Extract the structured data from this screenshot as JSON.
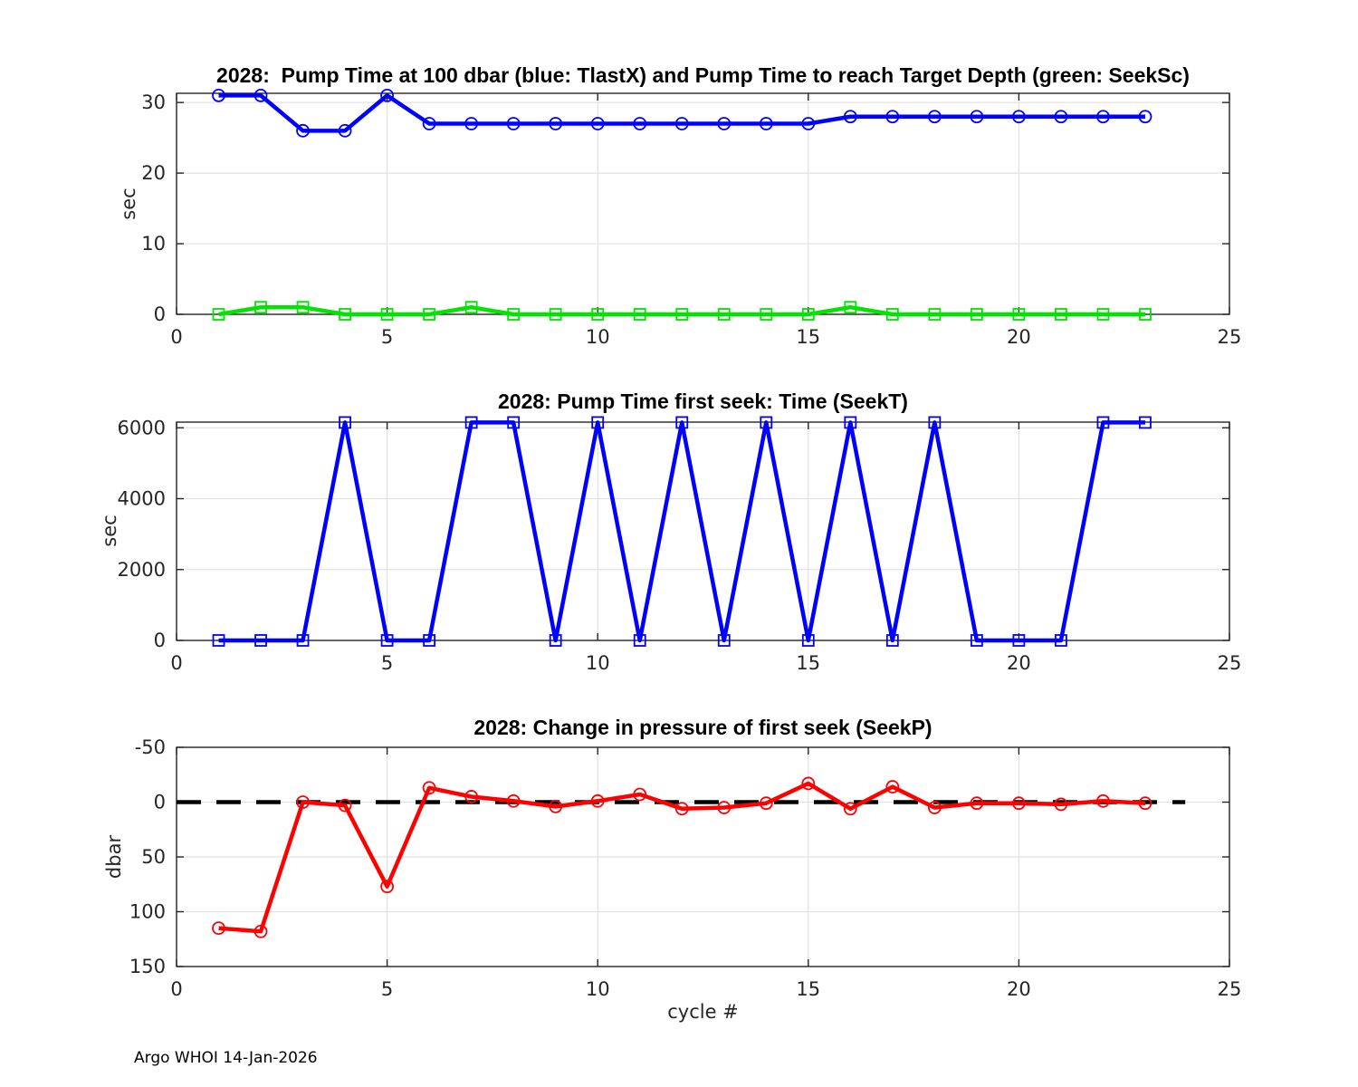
{
  "figure": {
    "footer": "Argo WHOI 14-Jan-2026",
    "background": "#ffffff"
  },
  "chart_data": [
    {
      "type": "line",
      "title": "2028:  Pump Time at 100 dbar (blue: TlastX) and Pump Time to reach Target Depth (green: SeekSc)",
      "ylabel": "sec",
      "xlabel": "",
      "xlim": [
        0,
        25
      ],
      "ylim": [
        0,
        31.3
      ],
      "y_reversed": false,
      "grid": true,
      "xticks": [
        0,
        5,
        10,
        15,
        20,
        25
      ],
      "yticks": [
        0,
        10,
        20,
        30
      ],
      "x": [
        1,
        2,
        3,
        4,
        5,
        6,
        7,
        8,
        9,
        10,
        11,
        12,
        13,
        14,
        15,
        16,
        17,
        18,
        19,
        20,
        21,
        22,
        23
      ],
      "series": [
        {
          "name": "TlastX",
          "color": "#0000ff",
          "marker": "circle",
          "values": [
            31,
            31,
            26,
            26,
            31,
            27,
            27,
            27,
            27,
            27,
            27,
            27,
            27,
            27,
            27,
            28,
            28,
            28,
            28,
            28,
            28,
            28,
            28
          ]
        },
        {
          "name": "SeekSc",
          "color": "#00e400",
          "marker": "square",
          "values": [
            0,
            1,
            1,
            0,
            0,
            0,
            1,
            0,
            0,
            0,
            0,
            0,
            0,
            0,
            0,
            1,
            0,
            0,
            0,
            0,
            0,
            0,
            0
          ]
        }
      ]
    },
    {
      "type": "line",
      "title": "2028: Pump Time first seek: Time (SeekT)",
      "ylabel": "sec",
      "xlabel": "",
      "xlim": [
        0,
        25
      ],
      "ylim": [
        0,
        6160
      ],
      "y_reversed": false,
      "grid": true,
      "xticks": [
        0,
        5,
        10,
        15,
        20,
        25
      ],
      "yticks": [
        0,
        2000,
        4000,
        6000
      ],
      "x": [
        1,
        2,
        3,
        4,
        5,
        6,
        7,
        8,
        9,
        10,
        11,
        12,
        13,
        14,
        15,
        16,
        17,
        18,
        19,
        20,
        21,
        22,
        23
      ],
      "series": [
        {
          "name": "SeekT",
          "color": "#0000ff",
          "marker": "square",
          "values": [
            0,
            0,
            0,
            6150,
            0,
            0,
            6150,
            6150,
            0,
            6150,
            0,
            6150,
            0,
            6150,
            0,
            6150,
            0,
            6150,
            0,
            0,
            0,
            6150,
            6150
          ]
        }
      ]
    },
    {
      "type": "line",
      "title": "2028: Change in pressure of first seek (SeekP)",
      "ylabel": "dbar",
      "xlabel": "cycle #",
      "xlim": [
        0,
        25
      ],
      "ylim": [
        -50,
        150
      ],
      "y_reversed": true,
      "grid": true,
      "xticks": [
        0,
        5,
        10,
        15,
        20,
        25
      ],
      "yticks": [
        -50,
        0,
        50,
        100,
        150
      ],
      "x": [
        1,
        2,
        3,
        4,
        5,
        6,
        7,
        8,
        9,
        10,
        11,
        12,
        13,
        14,
        15,
        16,
        17,
        18,
        19,
        20,
        21,
        22,
        23
      ],
      "series": [
        {
          "name": "SeekP",
          "color": "#ff0000",
          "marker": "circle",
          "values": [
            115,
            118,
            0,
            3,
            77,
            -13,
            -5,
            -1,
            4,
            -1,
            -7,
            6,
            5,
            1,
            -17,
            6,
            -14,
            5,
            1,
            1,
            2,
            -1,
            1
          ]
        }
      ],
      "refline": {
        "y": 0,
        "x_start": 0,
        "x_end": 23.95,
        "color": "#000000",
        "style": "dashed"
      }
    }
  ]
}
